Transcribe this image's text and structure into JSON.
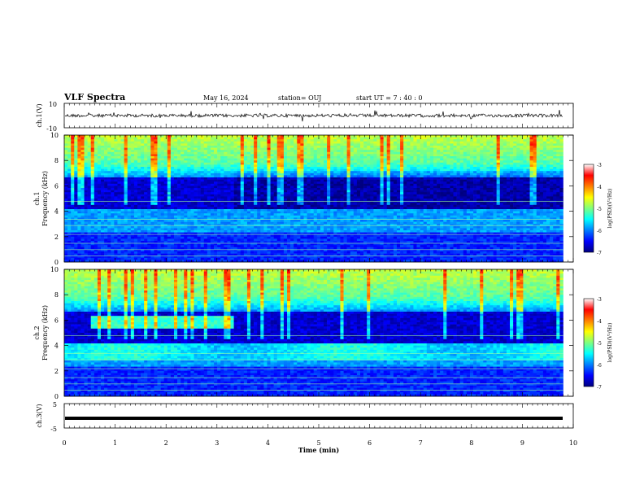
{
  "header": {
    "title": "VLF Spectra",
    "date": "May 16, 2024",
    "station": "station= OUJ",
    "start": "start  UT =   7 : 40 : 0"
  },
  "chart_data": [
    {
      "type": "line",
      "panel": "ch1-waveform",
      "ylabel": "ch.1(V)",
      "ylim": [
        -10,
        10
      ],
      "yticks": [
        "10",
        "-10"
      ],
      "xlim": [
        0,
        10
      ],
      "trace": {
        "color": "#000000",
        "level": 0,
        "ends_at_min": 9.8
      }
    },
    {
      "type": "heatmap",
      "panel": "ch1-spectrogram",
      "title": "ch.1",
      "ylabel": "Frequency (kHz)",
      "ylim": [
        0,
        10
      ],
      "yticks": [
        "0",
        "2",
        "4",
        "6",
        "8",
        "10"
      ],
      "xlim": [
        0,
        10
      ],
      "data_ends_at_min": 9.8,
      "colorbar": {
        "label": "log(PSD)(V²/Hz)",
        "range": [
          -7,
          -3
        ],
        "ticks": [
          "-3",
          "-4",
          "-5",
          "-6",
          "-7"
        ]
      }
    },
    {
      "type": "heatmap",
      "panel": "ch2-spectrogram",
      "title": "ch.2",
      "ylabel": "Frequency (kHz)",
      "ylim": [
        0,
        10
      ],
      "yticks": [
        "0",
        "2",
        "4",
        "6",
        "8",
        "10"
      ],
      "xlim": [
        0,
        10
      ],
      "data_ends_at_min": 9.8,
      "colorbar": {
        "label": "log(PSD)(V²/Hz)",
        "range": [
          -7,
          -3
        ],
        "ticks": [
          "-3",
          "-4",
          "-5",
          "-6",
          "-7"
        ]
      }
    },
    {
      "type": "line",
      "panel": "ch3-waveform",
      "ylabel": "ch.3(V)",
      "ylim": [
        -5,
        5
      ],
      "yticks": [
        "5",
        "-5"
      ],
      "xlim": [
        0,
        10
      ],
      "xlabel": "Time (min)",
      "xticks": [
        "0",
        "1",
        "2",
        "3",
        "4",
        "5",
        "6",
        "7",
        "8",
        "9",
        "10"
      ],
      "trace": {
        "color": "#000000",
        "level": -1,
        "ends_at_min": 9.8
      }
    }
  ],
  "colormap": [
    "#00007f",
    "#0000ff",
    "#007fff",
    "#00ffff",
    "#7fff7f",
    "#ffff00",
    "#ff7f00",
    "#ff0000",
    "#ffffff"
  ]
}
